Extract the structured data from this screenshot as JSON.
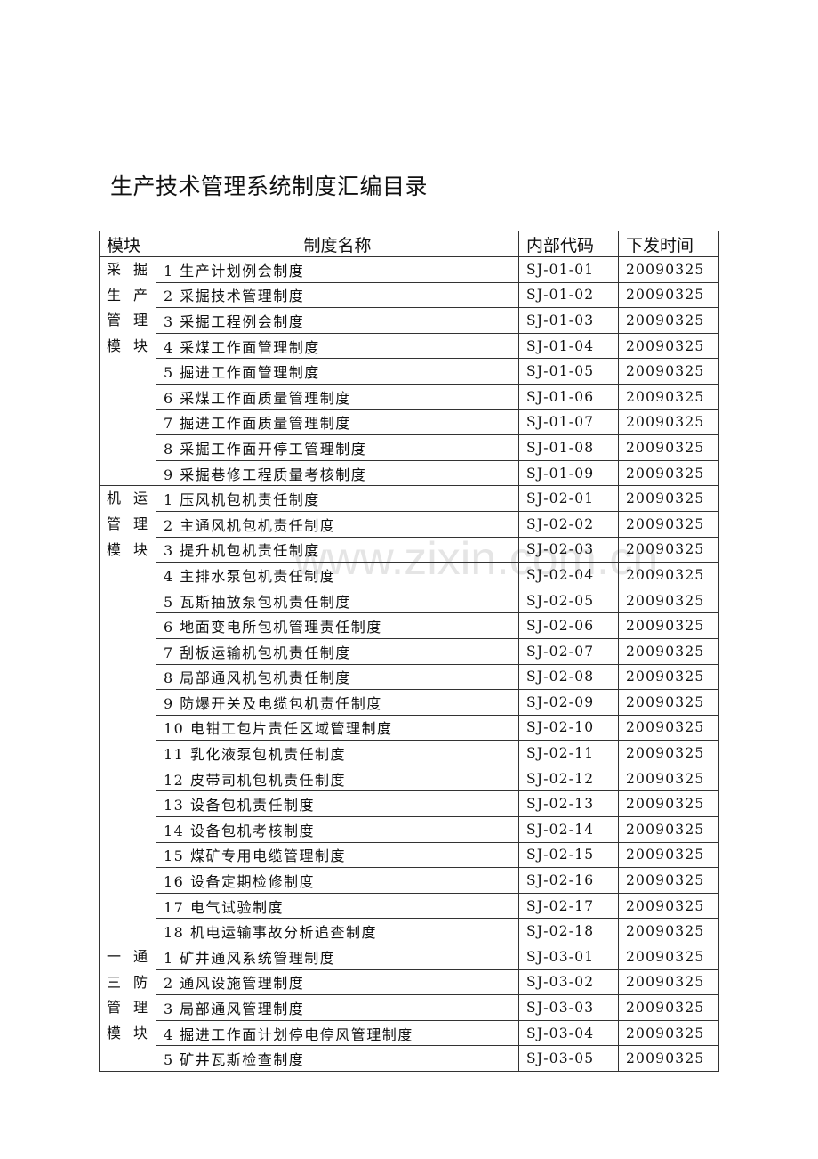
{
  "title": "生产技术管理系统制度汇编目录",
  "watermark": "www.zixin.com.cn",
  "headers": {
    "module": "模块",
    "name": "制度名称",
    "code": "内部代码",
    "date": "下发时间"
  },
  "modules": [
    {
      "label": "采掘生产管理模块",
      "items": [
        {
          "name": "1 生产计划例会制度",
          "code": "SJ-01-01",
          "date": "20090325"
        },
        {
          "name": "2 采掘技术管理制度",
          "code": "SJ-01-02",
          "date": "20090325"
        },
        {
          "name": "3 采掘工程例会制度",
          "code": "SJ-01-03",
          "date": "20090325"
        },
        {
          "name": "4 采煤工作面管理制度",
          "code": "SJ-01-04",
          "date": "20090325"
        },
        {
          "name": "5 掘进工作面管理制度",
          "code": "SJ-01-05",
          "date": "20090325"
        },
        {
          "name": "6 采煤工作面质量管理制度",
          "code": "SJ-01-06",
          "date": "20090325"
        },
        {
          "name": "7 掘进工作面质量管理制度",
          "code": "SJ-01-07",
          "date": "20090325"
        },
        {
          "name": "8 采掘工作面开停工管理制度",
          "code": "SJ-01-08",
          "date": "20090325"
        },
        {
          "name": "9 采掘巷修工程质量考核制度",
          "code": "SJ-01-09",
          "date": "20090325"
        }
      ]
    },
    {
      "label": "机运管理模块",
      "items": [
        {
          "name": "1 压风机包机责任制度",
          "code": "SJ-02-01",
          "date": "20090325"
        },
        {
          "name": "2 主通风机包机责任制度",
          "code": "SJ-02-02",
          "date": "20090325"
        },
        {
          "name": "3 提升机包机责任制度",
          "code": "SJ-02-03",
          "date": "20090325"
        },
        {
          "name": "4 主排水泵包机责任制度",
          "code": "SJ-02-04",
          "date": "20090325"
        },
        {
          "name": "5 瓦斯抽放泵包机责任制度",
          "code": "SJ-02-05",
          "date": "20090325"
        },
        {
          "name": "6 地面变电所包机管理责任制度",
          "code": "SJ-02-06",
          "date": "20090325"
        },
        {
          "name": "7 刮板运输机包机责任制度",
          "code": "SJ-02-07",
          "date": "20090325"
        },
        {
          "name": "8 局部通风机包机责任制度",
          "code": "SJ-02-08",
          "date": "20090325"
        },
        {
          "name": "9 防爆开关及电缆包机责任制度",
          "code": "SJ-02-09",
          "date": "20090325"
        },
        {
          "name": "10 电钳工包片责任区域管理制度",
          "code": "SJ-02-10",
          "date": "20090325"
        },
        {
          "name": "11 乳化液泵包机责任制度",
          "code": "SJ-02-11",
          "date": "20090325"
        },
        {
          "name": "12 皮带司机包机责任制度",
          "code": "SJ-02-12",
          "date": "20090325"
        },
        {
          "name": "13 设备包机责任制度",
          "code": "SJ-02-13",
          "date": "20090325"
        },
        {
          "name": "14 设备包机考核制度",
          "code": "SJ-02-14",
          "date": "20090325"
        },
        {
          "name": "15 煤矿专用电缆管理制度",
          "code": "SJ-02-15",
          "date": "20090325"
        },
        {
          "name": "16 设备定期检修制度",
          "code": "SJ-02-16",
          "date": "20090325"
        },
        {
          "name": "17 电气试验制度",
          "code": "SJ-02-17",
          "date": "20090325"
        },
        {
          "name": "18 机电运输事故分析追查制度",
          "code": "SJ-02-18",
          "date": "20090325"
        }
      ]
    },
    {
      "label": "一通三防管理模块",
      "items": [
        {
          "name": "1 矿井通风系统管理制度",
          "code": "SJ-03-01",
          "date": "20090325"
        },
        {
          "name": "2 通风设施管理制度",
          "code": "SJ-03-02",
          "date": "20090325"
        },
        {
          "name": "3 局部通风管理制度",
          "code": "SJ-03-03",
          "date": "20090325"
        },
        {
          "name": "4 掘进工作面计划停电停风管理制度",
          "code": "SJ-03-04",
          "date": "20090325"
        },
        {
          "name": "5 矿井瓦斯检查制度",
          "code": "SJ-03-05",
          "date": "20090325"
        }
      ]
    }
  ]
}
